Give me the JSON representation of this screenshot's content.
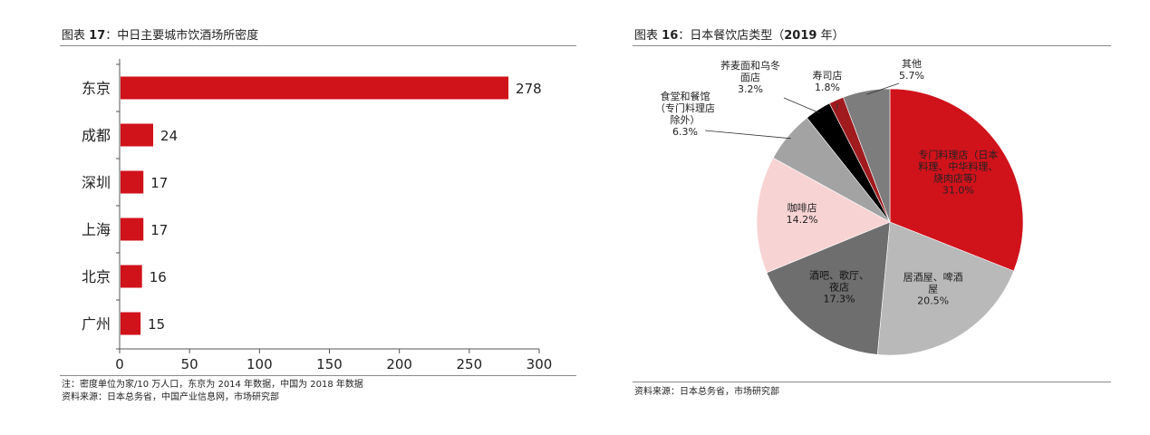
{
  "left": {
    "title_prefix": "图表",
    "title_num": "17",
    "title_text": "：中日主要城市饮酒场所密度",
    "note1": "注：密度单位为家/10 万人口，东京为 2014 年数据，中国为 2018 年数据",
    "note2": "资料来源：日本总务省，中国产业信息网，市场研究部"
  },
  "right": {
    "title_prefix": "图表",
    "title_num": "16",
    "title_text": "：日本餐饮店类型（",
    "title_year": "2019",
    "title_suffix": " 年）",
    "note1": "资料来源：日本总务省，市场研究部"
  },
  "chart_data": [
    {
      "type": "bar",
      "orientation": "horizontal",
      "categories": [
        "东京",
        "成都",
        "深圳",
        "上海",
        "北京",
        "广州"
      ],
      "values": [
        278,
        24,
        17,
        17,
        16,
        15
      ],
      "xlim": [
        0,
        300
      ],
      "xticks": [
        0,
        50,
        100,
        150,
        200,
        250,
        300
      ],
      "bar_color": "#d0121b"
    },
    {
      "type": "pie",
      "slices": [
        {
          "label": [
            "专门料理店（日本",
            "料理、中华料理、",
            "烧肉店等）"
          ],
          "value": 31.0,
          "pct": "31.0%",
          "color": "#d0121b"
        },
        {
          "label": [
            "居酒屋、啤酒",
            "屋"
          ],
          "value": 20.5,
          "pct": "20.5%",
          "color": "#b9b9b9"
        },
        {
          "label": [
            "酒吧、歌厅、",
            "夜店"
          ],
          "value": 17.3,
          "pct": "17.3%",
          "color": "#6e6e6e"
        },
        {
          "label": [
            "咖啡店"
          ],
          "value": 14.2,
          "pct": "14.2%",
          "color": "#f8d3d4"
        },
        {
          "label": [
            "食堂和餐馆",
            "（专门料理店",
            "除外）"
          ],
          "value": 6.3,
          "pct": "6.3%",
          "color": "#a3a3a3"
        },
        {
          "label": [
            "荞麦面和乌冬",
            "面店"
          ],
          "value": 3.2,
          "pct": "3.2%",
          "color": "#000000"
        },
        {
          "label": [
            "寿司店"
          ],
          "value": 1.8,
          "pct": "1.8%",
          "color": "#a01a1e"
        },
        {
          "label": [
            "其他"
          ],
          "value": 5.7,
          "pct": "5.7%",
          "color": "#7d7d7d"
        }
      ]
    }
  ]
}
